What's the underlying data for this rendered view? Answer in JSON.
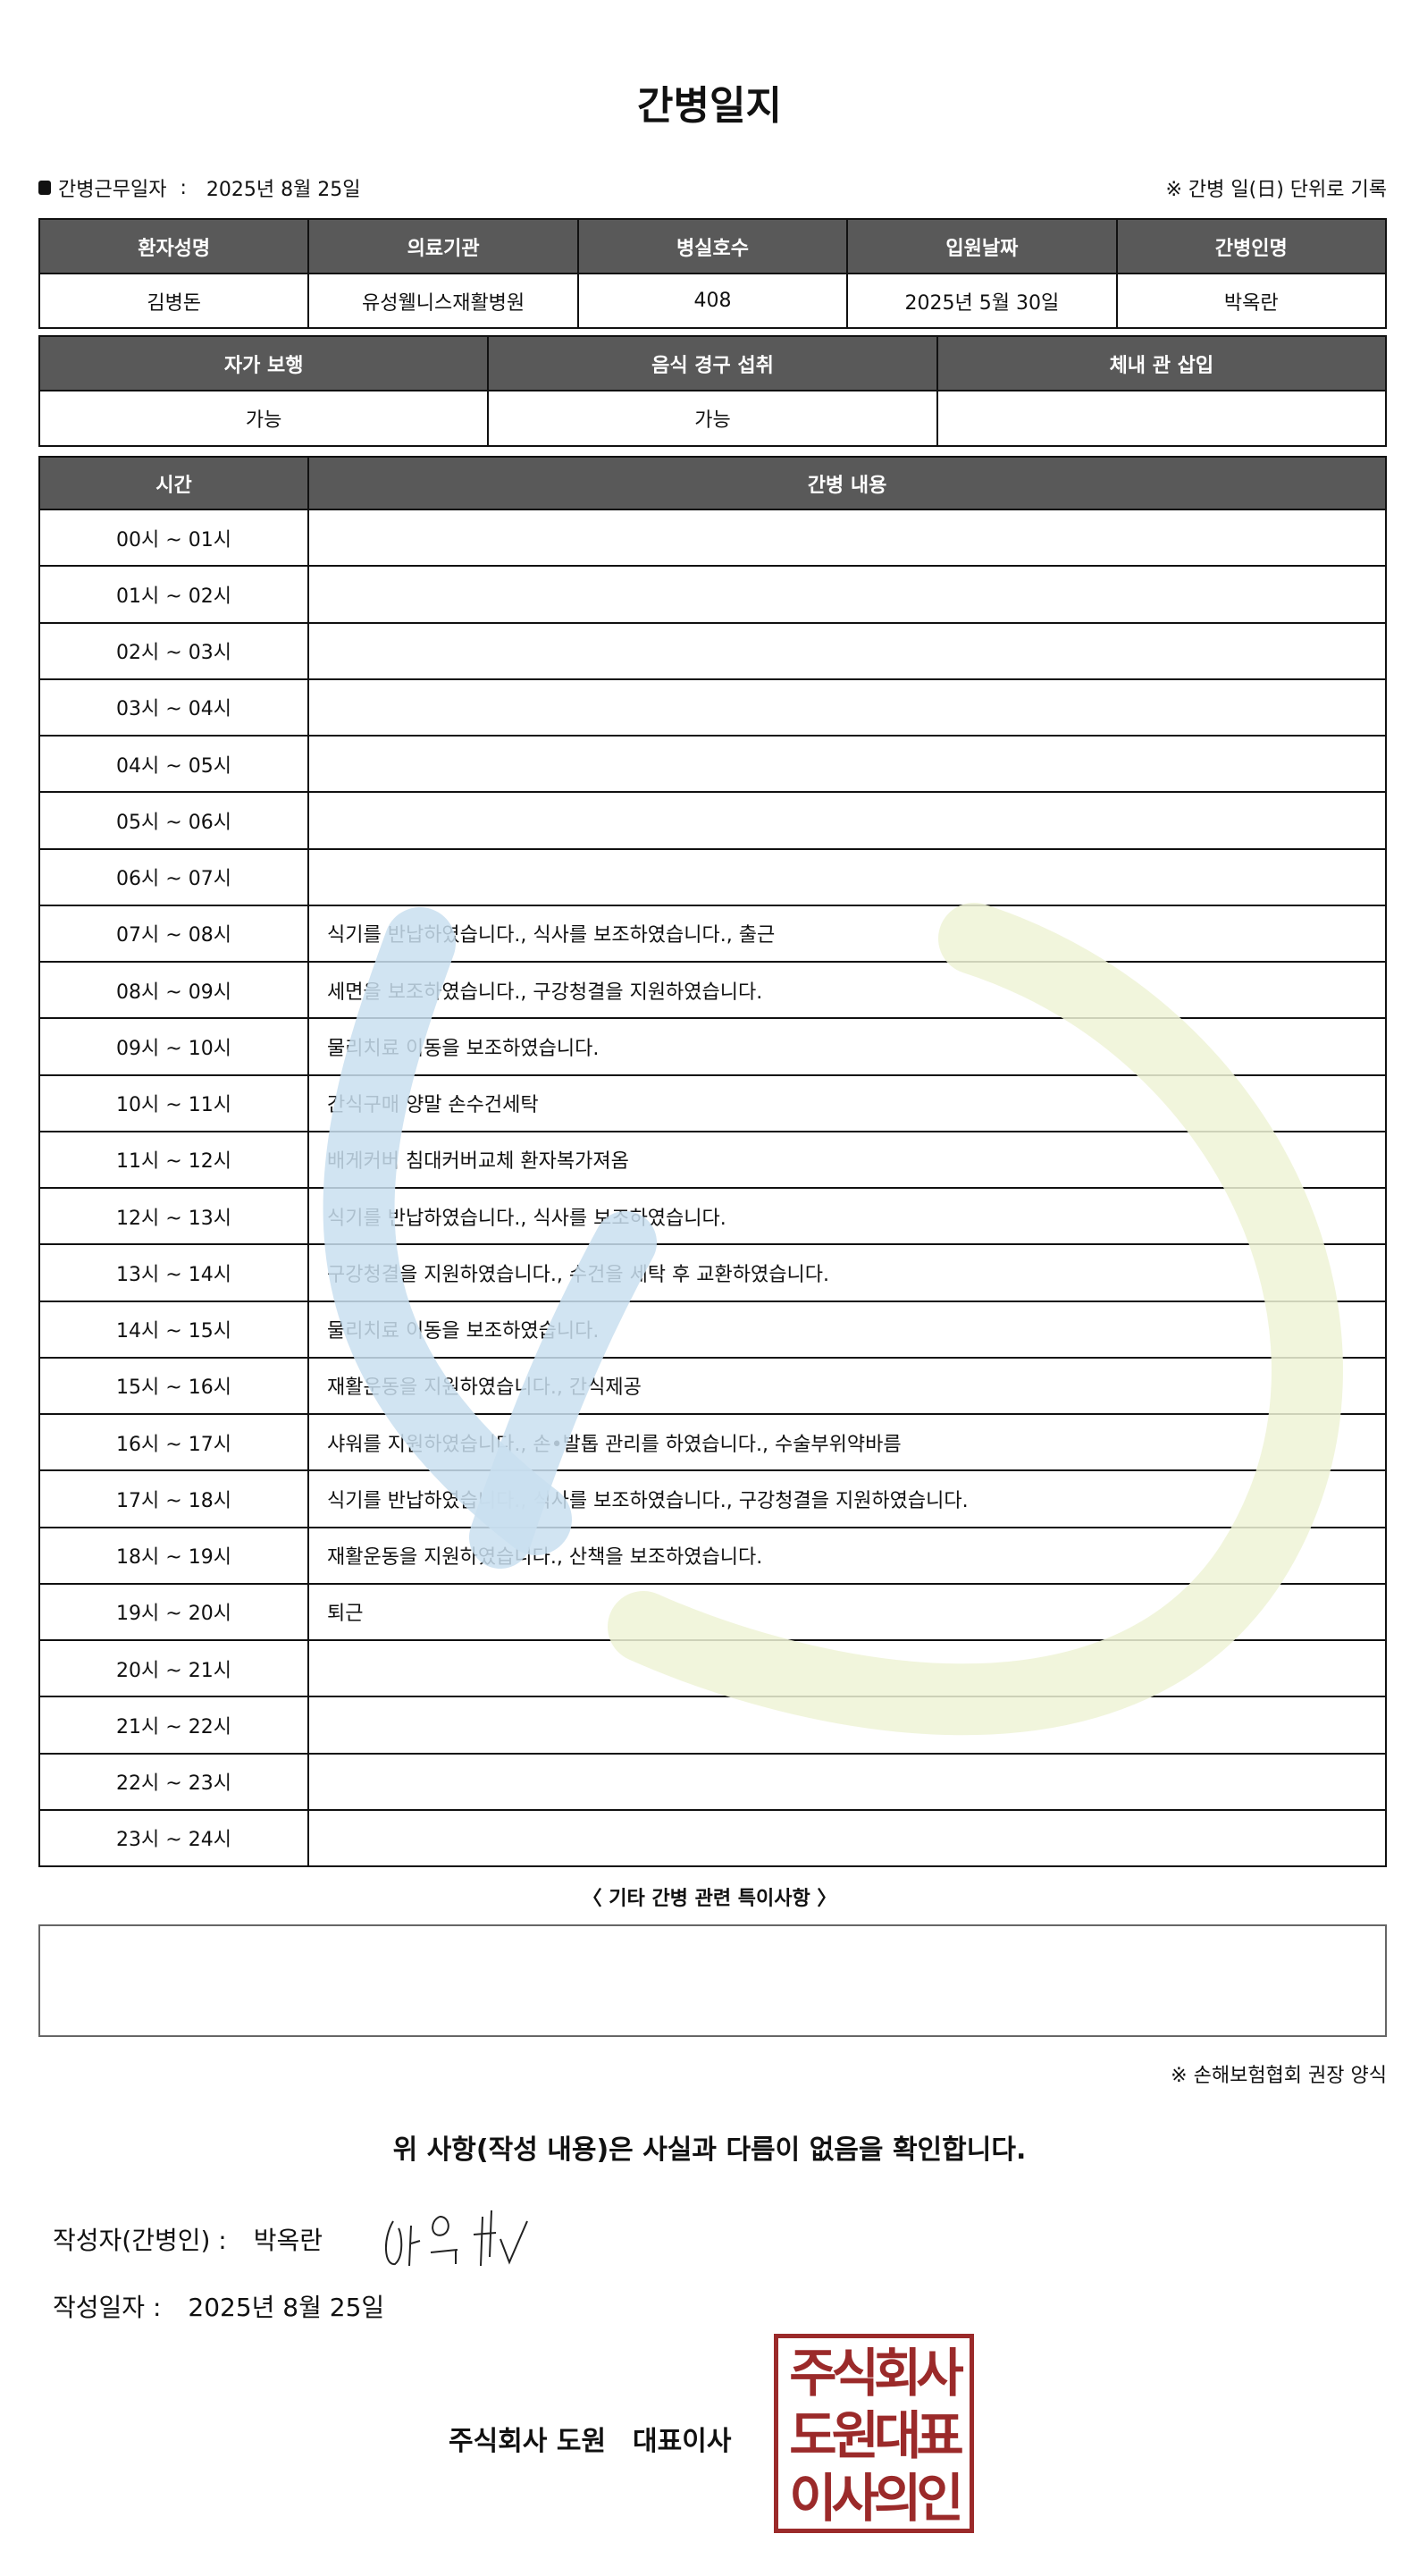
{
  "title": "간병일지",
  "work_date_label": "간병근무일자",
  "work_date": "2025년 8월 25일",
  "record_note": "※ 간병 일(日) 단위로 기록",
  "patient_table": {
    "headers": [
      "환자성명",
      "의료기관",
      "병실호수",
      "입원날짜",
      "간병인명"
    ],
    "values": [
      "김병돈",
      "유성웰니스재활병원",
      "408",
      "2025년 5월 30일",
      "박옥란"
    ]
  },
  "status_table": {
    "headers": [
      "자가 보행",
      "음식 경구 섭취",
      "체내 관 삽입"
    ],
    "values": [
      "가능",
      "가능",
      ""
    ]
  },
  "log_table": {
    "headers": [
      "시간",
      "간병 내용"
    ],
    "rows": [
      {
        "time": "00시 ~ 01시",
        "content": ""
      },
      {
        "time": "01시 ~ 02시",
        "content": ""
      },
      {
        "time": "02시 ~ 03시",
        "content": ""
      },
      {
        "time": "03시 ~ 04시",
        "content": ""
      },
      {
        "time": "04시 ~ 05시",
        "content": ""
      },
      {
        "time": "05시 ~ 06시",
        "content": ""
      },
      {
        "time": "06시 ~ 07시",
        "content": ""
      },
      {
        "time": "07시 ~ 08시",
        "content": "식기를 반납하였습니다., 식사를 보조하였습니다., 출근"
      },
      {
        "time": "08시 ~ 09시",
        "content": "세면을 보조하였습니다., 구강청결을 지원하였습니다."
      },
      {
        "time": "09시 ~ 10시",
        "content": "물리치료 이동을 보조하였습니다."
      },
      {
        "time": "10시 ~ 11시",
        "content": "간식구매 양말 손수건세탁"
      },
      {
        "time": "11시 ~ 12시",
        "content": "배게커버 침대커버교체 환자복가져옴"
      },
      {
        "time": "12시 ~ 13시",
        "content": "식기를 반납하였습니다., 식사를 보조하였습니다."
      },
      {
        "time": "13시 ~ 14시",
        "content": "구강청결을 지원하였습니다., 수건을 세탁 후 교환하였습니다."
      },
      {
        "time": "14시 ~ 15시",
        "content": "물리치료 이동을 보조하였습니다."
      },
      {
        "time": "15시 ~ 16시",
        "content": "재활운동을 지원하였습니다., 간식제공"
      },
      {
        "time": "16시 ~ 17시",
        "content": "샤워를 지원하였습니다., 손•발톱 관리를 하였습니다., 수술부위약바름"
      },
      {
        "time": "17시 ~ 18시",
        "content": "식기를 반납하였습니다., 식사를 보조하였습니다., 구강청결을 지원하였습니다."
      },
      {
        "time": "18시 ~ 19시",
        "content": "재활운동을 지원하였습니다., 산책을 보조하였습니다."
      },
      {
        "time": "19시 ~ 20시",
        "content": "퇴근"
      },
      {
        "time": "20시 ~ 21시",
        "content": ""
      },
      {
        "time": "21시 ~ 22시",
        "content": ""
      },
      {
        "time": "22시 ~ 23시",
        "content": ""
      },
      {
        "time": "23시 ~ 24시",
        "content": ""
      }
    ]
  },
  "remarks_label": "〈 기타 간병 관련 특이사항 〉",
  "remarks": "",
  "form_note": "※ 손해보험협회 권장 양식",
  "confirmation": "위 사항(작성 내용)은 사실과 다름이 없음을 확인합니다.",
  "writer_label": "작성자(간병인) :",
  "writer_name": "박옥란",
  "written_date_label": "작성일자 :",
  "written_date": "2025년 8월 25일",
  "company": "주식회사 도원",
  "representative": "대표이사",
  "seal_text": "주식회사도원대표이사의인",
  "colors": {
    "header_bg": "#595959",
    "seal": "#9b2a2a",
    "watermark_blue": "#c9dff0",
    "watermark_green": "#eef3d6"
  }
}
